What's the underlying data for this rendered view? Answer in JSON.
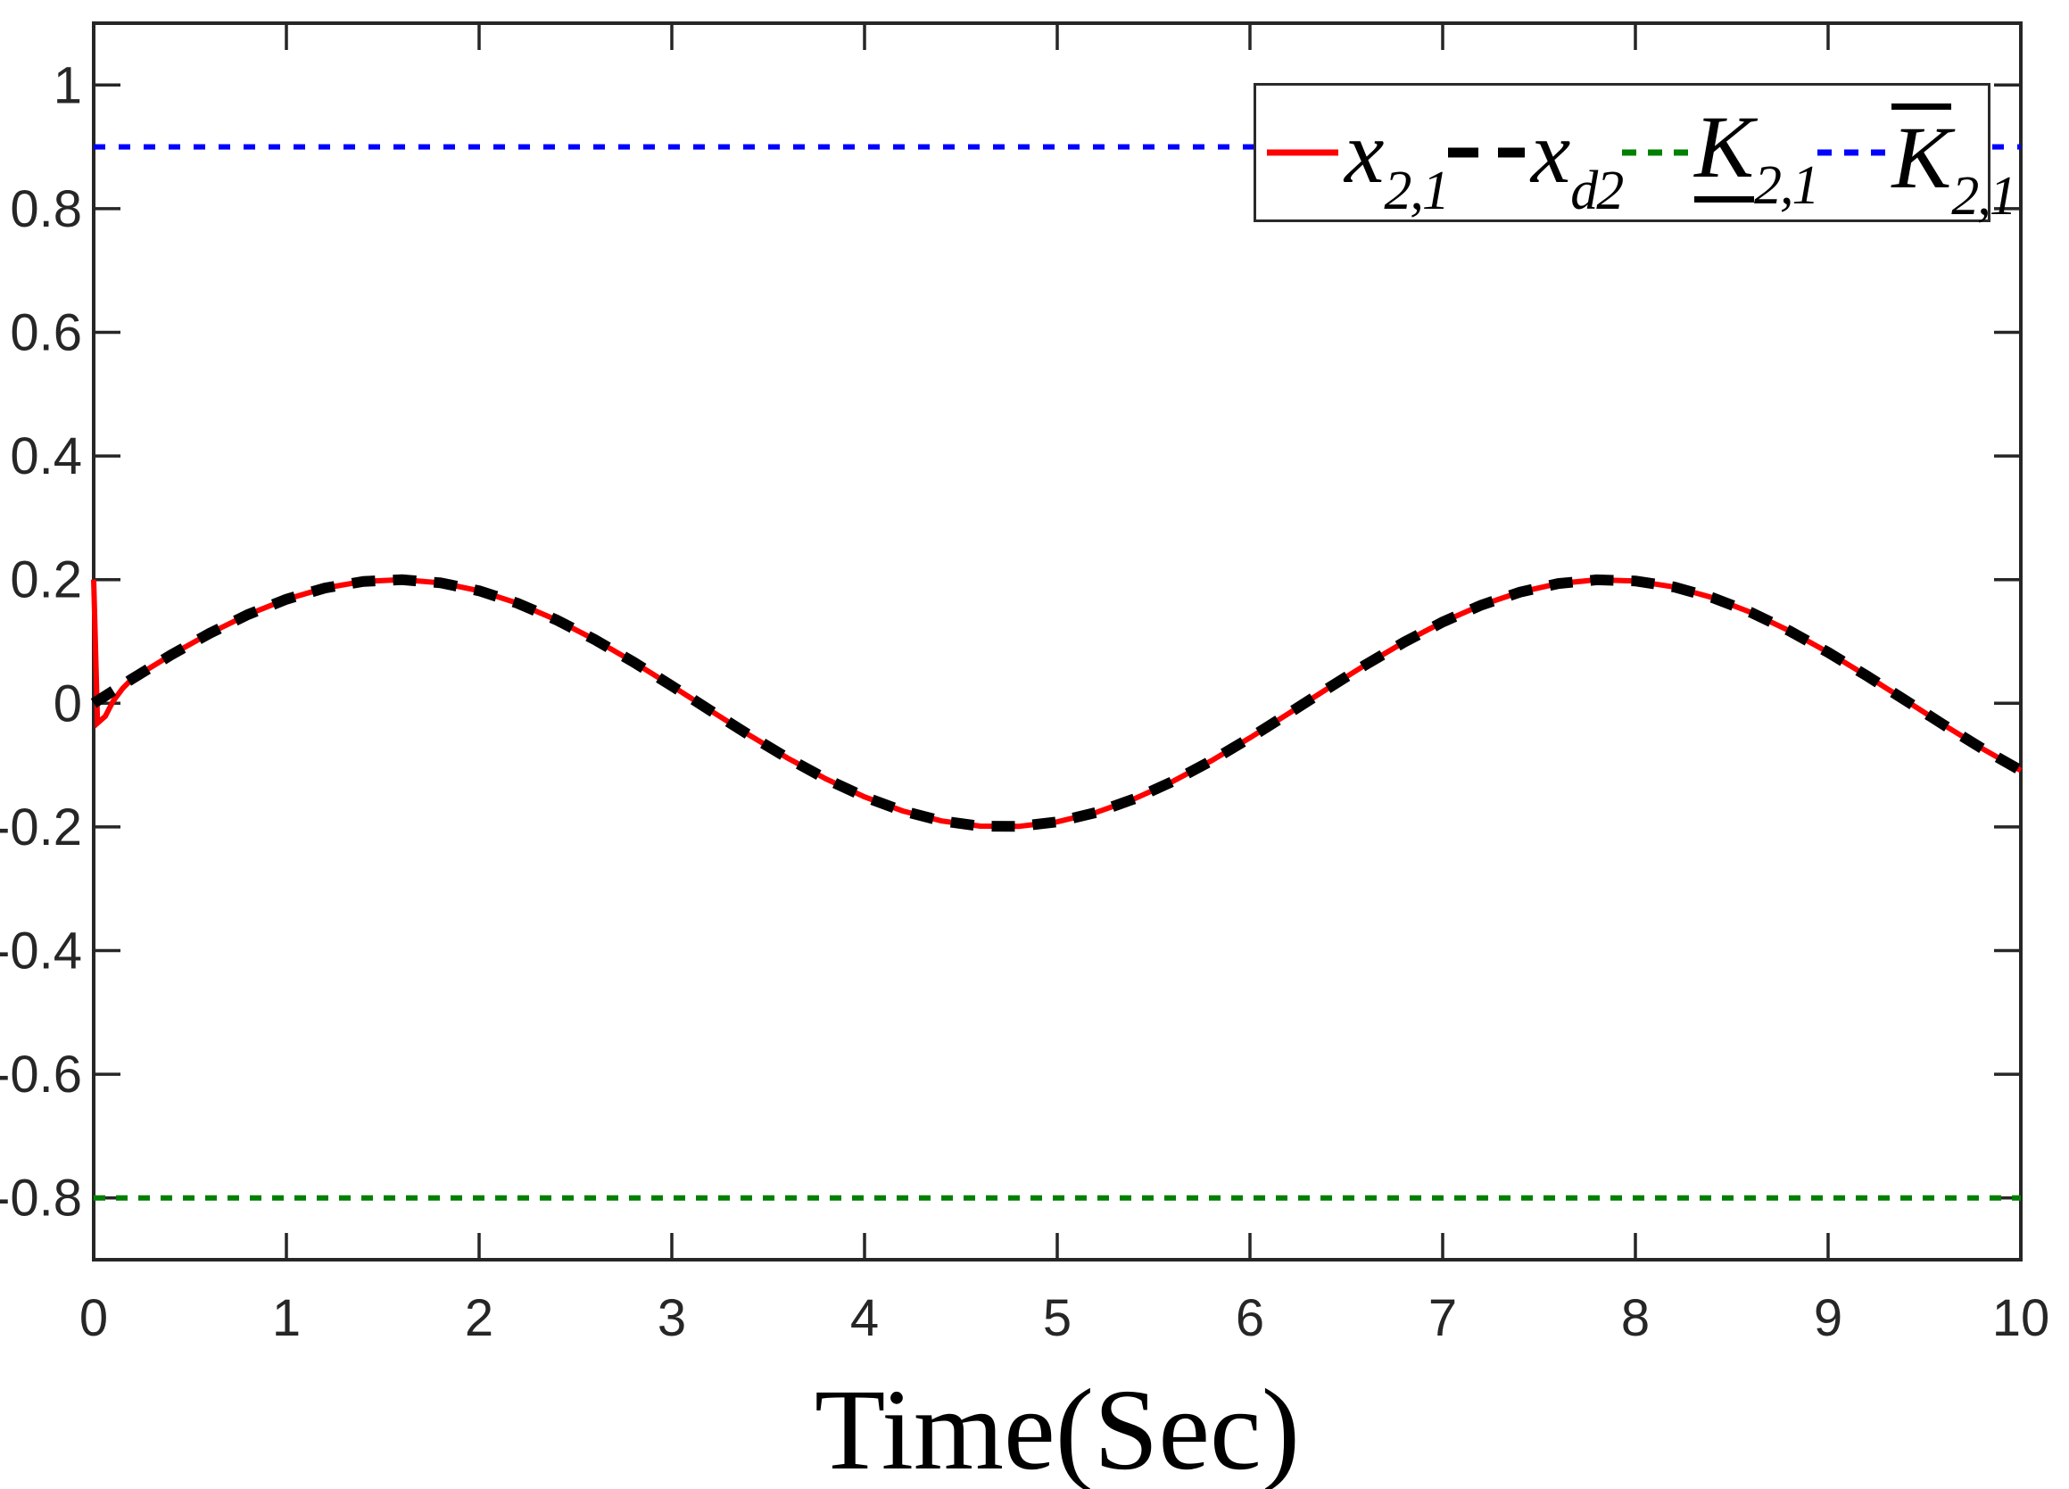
{
  "figure": {
    "background": "#ffffff",
    "axis_color": "#262626",
    "text_color": "#000000"
  },
  "chart_data": {
    "type": "line",
    "title": "",
    "xlabel": "Time(Sec)",
    "ylabel": "",
    "xlim": [
      0,
      10
    ],
    "ylim": [
      -0.9,
      1.1
    ],
    "grid": false,
    "legend_position": "top-right",
    "x_ticks": [
      0,
      1,
      2,
      3,
      4,
      5,
      6,
      7,
      8,
      9,
      10
    ],
    "x_tick_labels": [
      "0",
      "1",
      "2",
      "3",
      "4",
      "5",
      "6",
      "7",
      "8",
      "9",
      "10"
    ],
    "y_ticks": [
      1,
      0.8,
      0.6,
      0.4,
      0.2,
      0,
      -0.2,
      -0.4,
      -0.6,
      -0.8
    ],
    "y_tick_labels": [
      "1",
      "0.8",
      "0.6",
      "0.4",
      "0.2",
      "0",
      "-0.2",
      "-0.4",
      "-0.6",
      "-0.8"
    ],
    "series": [
      {
        "name": "x_2,1",
        "description": "state trajectory, solid red, initial value 0.2 with fast transient then tracks 0.2*sin(t)",
        "color": "#ff0000",
        "line_style": "solid",
        "stroke_width": 6,
        "dash": null,
        "points": [
          [
            0,
            0.2
          ],
          [
            0.02,
            -0.032
          ],
          [
            0.06,
            -0.021
          ],
          [
            0.1,
            0.003
          ],
          [
            0.15,
            0.024
          ],
          [
            0.2,
            0.0397
          ],
          [
            0.4,
            0.0779
          ],
          [
            0.6,
            0.1129
          ],
          [
            0.8,
            0.1435
          ],
          [
            1,
            0.1683
          ],
          [
            1.2,
            0.1864
          ],
          [
            1.4,
            0.1971
          ],
          [
            1.6,
            0.1999
          ],
          [
            1.8,
            0.1948
          ],
          [
            2,
            0.1819
          ],
          [
            2.2,
            0.1617
          ],
          [
            2.4,
            0.1351
          ],
          [
            2.6,
            0.1031
          ],
          [
            2.8,
            0.067
          ],
          [
            3,
            0.0282
          ],
          [
            3.2,
            -0.0117
          ],
          [
            3.4,
            -0.0511
          ],
          [
            3.6,
            -0.0885
          ],
          [
            3.8,
            -0.1224
          ],
          [
            4,
            -0.1514
          ],
          [
            4.2,
            -0.1743
          ],
          [
            4.4,
            -0.1903
          ],
          [
            4.6,
            -0.1987
          ],
          [
            4.8,
            -0.1992
          ],
          [
            5,
            -0.1918
          ],
          [
            5.2,
            -0.1767
          ],
          [
            5.4,
            -0.1546
          ],
          [
            5.6,
            -0.1263
          ],
          [
            5.8,
            -0.0929
          ],
          [
            6,
            -0.0559
          ],
          [
            6.2,
            -0.0166
          ],
          [
            6.4,
            0.0233
          ],
          [
            6.6,
            0.0623
          ],
          [
            6.8,
            0.0988
          ],
          [
            7,
            0.1314
          ],
          [
            7.2,
            0.1587
          ],
          [
            7.4,
            0.1797
          ],
          [
            7.6,
            0.1936
          ],
          [
            7.8,
            0.1997
          ],
          [
            8,
            0.1979
          ],
          [
            8.2,
            0.1881
          ],
          [
            8.4,
            0.1709
          ],
          [
            8.6,
            0.1469
          ],
          [
            8.8,
            0.117
          ],
          [
            9,
            0.0824
          ],
          [
            9.2,
            0.0446
          ],
          [
            9.4,
            0.005
          ],
          [
            9.6,
            -0.0349
          ],
          [
            9.8,
            -0.0733
          ],
          [
            10,
            -0.1088
          ]
        ]
      },
      {
        "name": "x_d2",
        "description": "desired trajectory 0.2*sin(t), thick black dashed",
        "color": "#000000",
        "line_style": "dashed",
        "stroke_width": 12,
        "dash": [
          26,
          20
        ],
        "points": [
          [
            0,
            0
          ],
          [
            0.2,
            0.0397
          ],
          [
            0.4,
            0.0779
          ],
          [
            0.6,
            0.1129
          ],
          [
            0.8,
            0.1435
          ],
          [
            1,
            0.1683
          ],
          [
            1.2,
            0.1864
          ],
          [
            1.4,
            0.1971
          ],
          [
            1.6,
            0.1999
          ],
          [
            1.8,
            0.1948
          ],
          [
            2,
            0.1819
          ],
          [
            2.2,
            0.1617
          ],
          [
            2.4,
            0.1351
          ],
          [
            2.6,
            0.1031
          ],
          [
            2.8,
            0.067
          ],
          [
            3,
            0.0282
          ],
          [
            3.2,
            -0.0117
          ],
          [
            3.4,
            -0.0511
          ],
          [
            3.6,
            -0.0885
          ],
          [
            3.8,
            -0.1224
          ],
          [
            4,
            -0.1514
          ],
          [
            4.2,
            -0.1743
          ],
          [
            4.4,
            -0.1903
          ],
          [
            4.6,
            -0.1987
          ],
          [
            4.8,
            -0.1992
          ],
          [
            5,
            -0.1918
          ],
          [
            5.2,
            -0.1767
          ],
          [
            5.4,
            -0.1546
          ],
          [
            5.6,
            -0.1263
          ],
          [
            5.8,
            -0.0929
          ],
          [
            6,
            -0.0559
          ],
          [
            6.2,
            -0.0166
          ],
          [
            6.4,
            0.0233
          ],
          [
            6.6,
            0.0623
          ],
          [
            6.8,
            0.0988
          ],
          [
            7,
            0.1314
          ],
          [
            7.2,
            0.1587
          ],
          [
            7.4,
            0.1797
          ],
          [
            7.6,
            0.1936
          ],
          [
            7.8,
            0.1997
          ],
          [
            8,
            0.1979
          ],
          [
            8.2,
            0.1881
          ],
          [
            8.4,
            0.1709
          ],
          [
            8.6,
            0.1469
          ],
          [
            8.8,
            0.117
          ],
          [
            9,
            0.0824
          ],
          [
            9.2,
            0.0446
          ],
          [
            9.4,
            0.005
          ],
          [
            9.6,
            -0.0349
          ],
          [
            9.8,
            -0.0733
          ],
          [
            10,
            -0.1088
          ]
        ]
      },
      {
        "name": "K_lower_2,1",
        "description": "constant lower bound",
        "color": "#008000",
        "line_style": "dashed",
        "stroke_width": 6,
        "dash": [
          13,
          12
        ],
        "points": [
          [
            0,
            -0.8
          ],
          [
            10,
            -0.8
          ]
        ]
      },
      {
        "name": "K_upper_2,1",
        "description": "constant upper bound",
        "color": "#0000ff",
        "line_style": "dashed",
        "stroke_width": 6,
        "dash": [
          13,
          15
        ],
        "points": [
          [
            0,
            0.9
          ],
          [
            10,
            0.9
          ]
        ]
      }
    ],
    "legend": {
      "entries": [
        {
          "label_base": "x",
          "label_sub": "2,1",
          "decoration": "none",
          "color": "#ff0000",
          "sample_dash": null,
          "sample_width": 7,
          "sample_len": 80
        },
        {
          "label_base": "x",
          "label_sub": "d2",
          "decoration": "none",
          "color": "#000000",
          "sample_dash": [
            34,
            22
          ],
          "sample_width": 11,
          "sample_len": 86
        },
        {
          "label_base": "K",
          "label_sub": "2,1",
          "decoration": "underline",
          "color": "#008000",
          "sample_dash": [
            16,
            13
          ],
          "sample_width": 7,
          "sample_len": 74
        },
        {
          "label_base": "K",
          "label_sub": "2,1",
          "decoration": "overline",
          "color": "#0000ff",
          "sample_dash": [
            16,
            14
          ],
          "sample_width": 7,
          "sample_len": 76
        }
      ]
    }
  }
}
